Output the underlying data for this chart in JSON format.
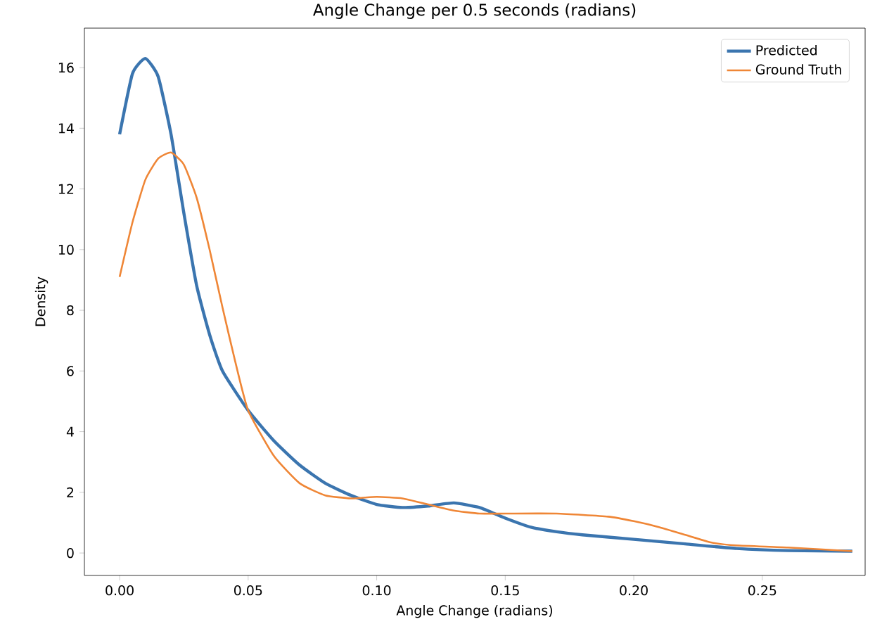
{
  "chart_data": {
    "type": "line",
    "title": "Angle Change per 0.5 seconds (radians)",
    "xlabel": "Angle Change (radians)",
    "ylabel": "Density",
    "xlim": [
      -0.0137,
      0.29
    ],
    "ylim": [
      -0.74,
      17.3
    ],
    "xticks": [
      {
        "value": 0,
        "label": "0.00"
      },
      {
        "value": 0.05,
        "label": "0.05"
      },
      {
        "value": 0.1,
        "label": "0.10"
      },
      {
        "value": 0.15,
        "label": "0.15"
      },
      {
        "value": 0.2,
        "label": "0.20"
      },
      {
        "value": 0.25,
        "label": "0.25"
      }
    ],
    "yticks": [
      0,
      2,
      4,
      6,
      8,
      10,
      12,
      14,
      16
    ],
    "legend": "top right",
    "grid": false,
    "series": [
      {
        "name": "Predicted",
        "color": "#3b75af",
        "x": [
          0,
          0.005,
          0.01,
          0.015,
          0.02,
          0.025,
          0.03,
          0.035,
          0.04,
          0.05,
          0.06,
          0.07,
          0.08,
          0.09,
          0.1,
          0.11,
          0.12,
          0.13,
          0.14,
          0.15,
          0.16,
          0.17,
          0.18,
          0.2,
          0.22,
          0.24,
          0.26,
          0.285
        ],
        "values": [
          13.8,
          15.8,
          16.3,
          15.7,
          13.8,
          11.2,
          8.8,
          7.2,
          6.0,
          4.7,
          3.7,
          2.9,
          2.3,
          1.9,
          1.6,
          1.5,
          1.55,
          1.65,
          1.5,
          1.15,
          0.85,
          0.7,
          0.6,
          0.45,
          0.3,
          0.15,
          0.08,
          0.06
        ]
      },
      {
        "name": "Ground Truth",
        "color": "#ef8636",
        "x": [
          0,
          0.005,
          0.01,
          0.015,
          0.02,
          0.025,
          0.03,
          0.035,
          0.04,
          0.045,
          0.05,
          0.06,
          0.07,
          0.08,
          0.09,
          0.1,
          0.11,
          0.12,
          0.13,
          0.14,
          0.15,
          0.17,
          0.19,
          0.2,
          0.21,
          0.22,
          0.23,
          0.24,
          0.26,
          0.285
        ],
        "values": [
          9.1,
          10.9,
          12.3,
          13.0,
          13.2,
          12.8,
          11.7,
          10.0,
          8.1,
          6.3,
          4.7,
          3.2,
          2.3,
          1.9,
          1.8,
          1.85,
          1.8,
          1.6,
          1.4,
          1.3,
          1.3,
          1.3,
          1.2,
          1.05,
          0.85,
          0.6,
          0.35,
          0.25,
          0.18,
          0.06
        ]
      }
    ]
  }
}
